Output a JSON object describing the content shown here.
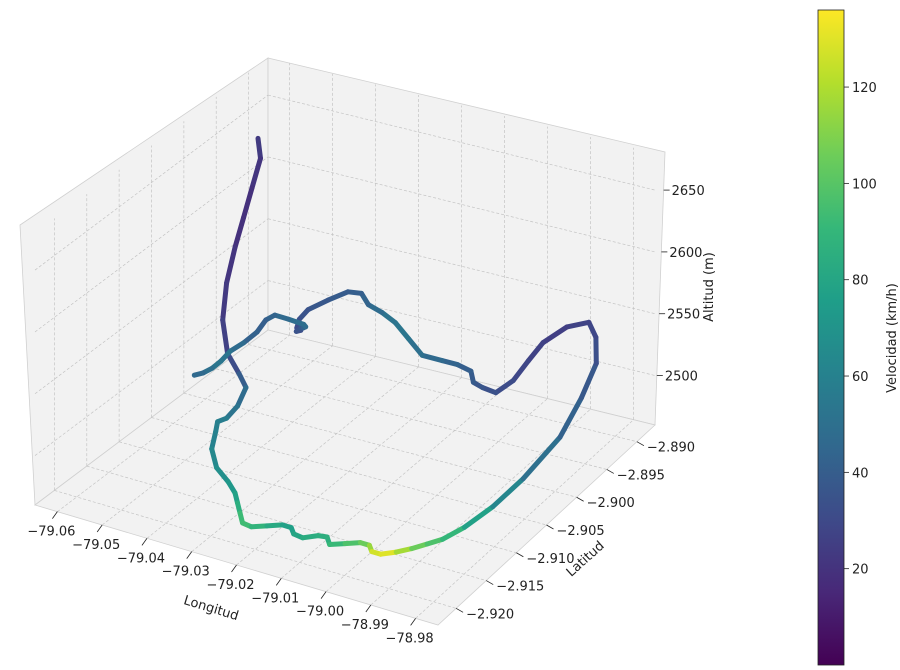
{
  "chart_data": {
    "type": "line",
    "projection": "3d",
    "title": "",
    "xlabel": "Longitud",
    "ylabel": "Latitud",
    "zlabel": "Altitud (m)",
    "xlim": [
      -79.065,
      -78.975
    ],
    "ylim": [
      -2.923,
      -2.887
    ],
    "zlim": [
      2460,
      2680
    ],
    "x_ticks": [
      "−79.06",
      "−79.05",
      "−79.04",
      "−79.03",
      "−79.02",
      "−79.01",
      "−79.00",
      "−78.99",
      "−78.98"
    ],
    "y_ticks": [
      "−2.890",
      "−2.895",
      "−2.900",
      "−2.905",
      "−2.910",
      "−2.915",
      "−2.920"
    ],
    "z_ticks": [
      "2500",
      "2550",
      "2600",
      "2650"
    ],
    "grid": true,
    "colorbar": {
      "label": "Velocidad (km/h)",
      "min": 0,
      "max": 136,
      "ticks": [
        "20",
        "40",
        "60",
        "80",
        "100",
        "120"
      ],
      "colormap": "viridis"
    },
    "series": [
      {
        "lon": [
          -79.06,
          -79.058,
          -79.057,
          -79.056,
          -79.055,
          -79.054,
          -79.052,
          -79.048,
          -79.044,
          -79.041,
          -79.04,
          -79.041,
          -79.043,
          -79.042,
          -79.04,
          -79.036,
          -79.032,
          -79.029,
          -79.027,
          -79.025,
          -79.023,
          -79.021,
          -79.019,
          -79.017,
          -79.015,
          -79.013,
          -79.011,
          -79.009,
          -79.007,
          -79.005,
          -79.003,
          -79.001,
          -78.999,
          -78.997,
          -78.995,
          -78.993,
          -78.991,
          -78.989,
          -78.987,
          -78.985,
          -78.983,
          -78.982,
          -78.981,
          -78.982,
          -78.983,
          -78.986,
          -78.989,
          -78.991,
          -78.992,
          -78.991,
          -78.99,
          -78.991,
          -78.994,
          -78.996,
          -78.998,
          -79.001,
          -79.003,
          -79.006,
          -79.009,
          -79.012,
          -79.015,
          -79.018,
          -79.021,
          -79.024,
          -79.027,
          -79.03,
          -79.032,
          -79.034,
          -79.035,
          -79.036,
          -79.037,
          -79.036,
          -79.034,
          -79.032,
          -79.031,
          -79.033,
          -79.036,
          -79.038,
          -79.04,
          -79.043,
          -79.046,
          -79.048,
          -79.05,
          -79.052,
          -79.054
        ],
        "lat": [
          -2.892,
          -2.893,
          -2.895,
          -2.897,
          -2.899,
          -2.901,
          -2.903,
          -2.905,
          -2.906,
          -2.907,
          -2.909,
          -2.91,
          -2.91,
          -2.911,
          -2.913,
          -2.915,
          -2.916,
          -2.917,
          -2.918,
          -2.919,
          -2.92,
          -2.92,
          -2.919,
          -2.918,
          -2.918,
          -2.919,
          -2.919,
          -2.918,
          -2.918,
          -2.919,
          -2.918,
          -2.917,
          -2.917,
          -2.918,
          -2.918,
          -2.917,
          -2.916,
          -2.915,
          -2.914,
          -2.912,
          -2.909,
          -2.905,
          -2.9,
          -2.896,
          -2.893,
          -2.891,
          -2.89,
          -2.892,
          -2.895,
          -2.898,
          -2.901,
          -2.903,
          -2.903,
          -2.903,
          -2.902,
          -2.902,
          -2.903,
          -2.904,
          -2.904,
          -2.904,
          -2.904,
          -2.904,
          -2.903,
          -2.903,
          -2.904,
          -2.905,
          -2.905,
          -2.904,
          -2.903,
          -2.902,
          -2.902,
          -2.902,
          -2.903,
          -2.904,
          -2.905,
          -2.906,
          -2.906,
          -2.906,
          -2.906,
          -2.906,
          -2.906,
          -2.906,
          -2.906,
          -2.906,
          -2.906
        ],
        "alt": [
          2640,
          2630,
          2615,
          2600,
          2585,
          2565,
          2545,
          2530,
          2522,
          2518,
          2512,
          2505,
          2500,
          2497,
          2493,
          2490,
          2487,
          2485,
          2483,
          2481,
          2479,
          2478,
          2477,
          2476,
          2476,
          2477,
          2476,
          2476,
          2477,
          2477,
          2476,
          2475,
          2475,
          2476,
          2476,
          2476,
          2477,
          2479,
          2481,
          2485,
          2492,
          2500,
          2515,
          2530,
          2545,
          2555,
          2560,
          2562,
          2560,
          2558,
          2555,
          2552,
          2553,
          2555,
          2558,
          2560,
          2565,
          2570,
          2580,
          2590,
          2595,
          2598,
          2600,
          2598,
          2592,
          2585,
          2575,
          2562,
          2555,
          2550,
          2548,
          2552,
          2558,
          2565,
          2572,
          2578,
          2578,
          2572,
          2560,
          2548,
          2538,
          2528,
          2520,
          2514,
          2510
        ],
        "speed": [
          25,
          22,
          20,
          18,
          20,
          22,
          24,
          28,
          35,
          45,
          50,
          55,
          60,
          58,
          62,
          65,
          70,
          75,
          80,
          90,
          95,
          92,
          85,
          80,
          75,
          78,
          82,
          86,
          84,
          88,
          95,
          100,
          110,
          120,
          134,
          125,
          110,
          100,
          95,
          85,
          70,
          55,
          45,
          40,
          35,
          30,
          28,
          26,
          25,
          28,
          30,
          32,
          35,
          38,
          40,
          42,
          45,
          48,
          52,
          55,
          50,
          45,
          42,
          40,
          38,
          36,
          34,
          32,
          30,
          32,
          34,
          36,
          40,
          45,
          50,
          48,
          45,
          42,
          40,
          45,
          50,
          55,
          52,
          48,
          45
        ]
      }
    ]
  },
  "colors": {
    "pane": "#f2f2f2",
    "pane_edge": "#d0d0d0",
    "grid": "#c4c4c4",
    "text": "#222222"
  }
}
